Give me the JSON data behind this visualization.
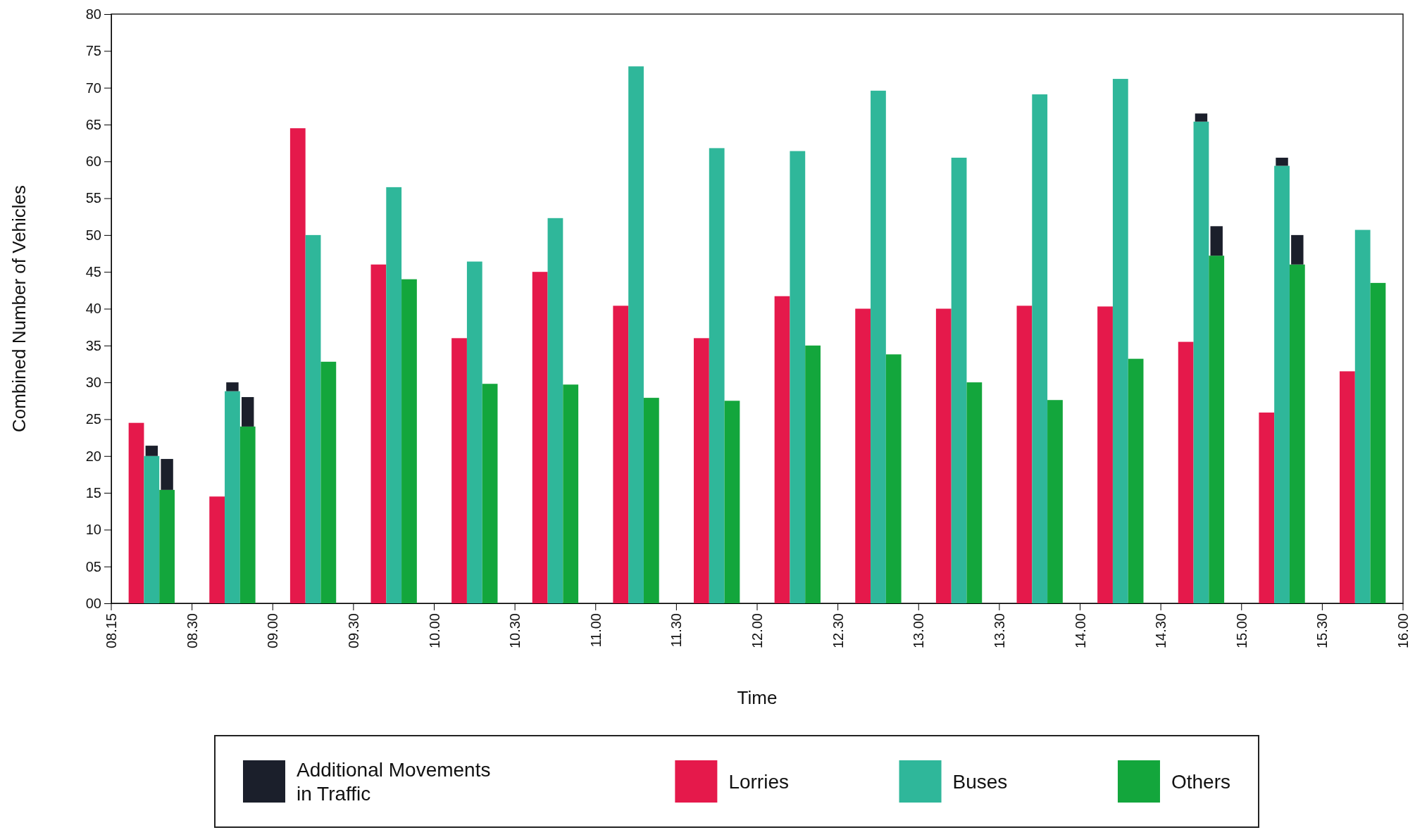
{
  "chart_data": {
    "type": "bar",
    "xlabel": "Time",
    "ylabel": "Combined Number of Vehicles",
    "categories": [
      null,
      null,
      null,
      null,
      null,
      null,
      null,
      null,
      null,
      null,
      null,
      null,
      null,
      null,
      null,
      null
    ],
    "annotations": [
      "08.15",
      "08.30",
      "09.00",
      "09.30",
      "10.00",
      "10.30",
      "11.00",
      "11.30",
      "12.00",
      "12.30",
      "13.00",
      "13.30",
      "14.00",
      "14.30",
      "15.00",
      "15.30",
      "16.00"
    ],
    "ylim": [
      0,
      80
    ],
    "yticks": [
      {
        "value": 0,
        "label": "00"
      },
      {
        "value": 5,
        "label": "05"
      },
      10,
      15,
      20,
      25,
      30,
      35,
      40,
      45,
      50,
      55,
      60,
      65,
      70,
      75,
      80
    ],
    "legend": "bottom",
    "series": [
      {
        "name": "Lorries",
        "color": "#e5194b",
        "values": [
          24.5,
          14.5,
          64.5,
          46,
          36,
          45,
          40.4,
          36,
          41.7,
          40,
          40,
          40.4,
          40.3,
          35.5,
          25.9,
          31.5
        ]
      },
      {
        "name": "Buses",
        "color": "#2fb79a",
        "values": [
          20,
          28.8,
          50,
          56.5,
          46.4,
          52.3,
          72.9,
          61.8,
          61.4,
          69.6,
          60.5,
          69.1,
          71.2,
          65.4,
          59.4,
          50.7
        ]
      },
      {
        "name": "Others",
        "color": "#13a63c",
        "values": [
          15.4,
          24,
          32.8,
          44,
          29.8,
          29.7,
          27.9,
          27.5,
          35,
          33.8,
          30,
          27.6,
          33.2,
          47.2,
          46,
          43.5
        ]
      },
      {
        "name": "Additional Movements in Traffic",
        "color": "#1b1f2b",
        "base": [
          20,
          28.8,
          null,
          null,
          null,
          null,
          null,
          null,
          null,
          null,
          null,
          null,
          null,
          65.4,
          59.4,
          null
        ],
        "values": [
          1.4,
          1.2,
          null,
          null,
          null,
          null,
          null,
          null,
          null,
          null,
          null,
          null,
          null,
          1.1,
          1.1,
          null
        ]
      },
      {
        "color": "#1b1f2b",
        "base": [
          15.4,
          24,
          null,
          null,
          null,
          null,
          null,
          null,
          null,
          null,
          null,
          null,
          null,
          47.2,
          46,
          null
        ],
        "values": [
          4.2,
          4,
          null,
          null,
          null,
          null,
          null,
          null,
          null,
          null,
          null,
          null,
          null,
          4,
          4,
          null
        ]
      }
    ]
  }
}
